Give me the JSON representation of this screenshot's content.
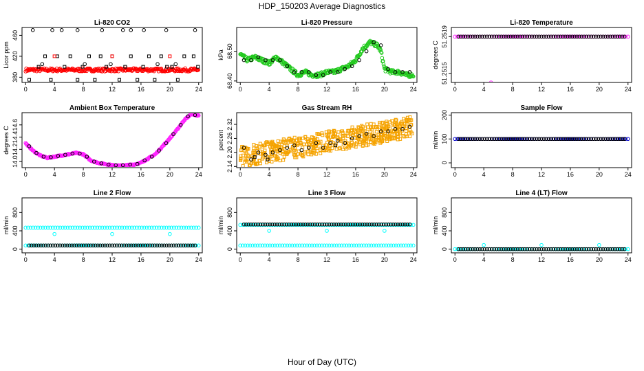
{
  "figure": {
    "title": "HDP_150203  Average Diagnostics",
    "xlabel": "Hour of Day (UTC)"
  },
  "colors": {
    "black": "#000000",
    "red": "#ff0000",
    "green": "#22c91e",
    "magenta": "#ff22ff",
    "orange": "#f5a300",
    "blue": "#0000cc",
    "cyan": "#00ffff"
  },
  "chart_data": [
    {
      "type": "scatter",
      "title": "Li-820 CO2",
      "ylabel": "Licor ppm",
      "xlim": [
        -0.5,
        24.5
      ],
      "ylim": [
        370,
        475
      ],
      "xticks": [
        0,
        4,
        8,
        12,
        16,
        20,
        24
      ],
      "yticks": [
        380,
        420,
        460
      ],
      "grid": false,
      "series": [
        {
          "color": "red",
          "marker": "circle",
          "kind": "band",
          "x_range": [
            0,
            24
          ],
          "y_range": [
            391,
            397
          ]
        },
        {
          "color": "black",
          "marker": "circle",
          "kind": "points",
          "x": [
            1,
            2.3,
            3.7,
            5,
            7.2,
            8.2,
            10.6,
            11.8,
            13.5,
            14.6,
            16.4,
            18.3,
            19.5,
            20.8,
            23.5
          ],
          "y": [
            470,
            405,
            470,
            470,
            470,
            405,
            470,
            405,
            470,
            470,
            470,
            405,
            470,
            405,
            470
          ]
        },
        {
          "color": "black",
          "marker": "square",
          "kind": "points",
          "x": [
            0.5,
            1.8,
            2.7,
            3.5,
            4.4,
            5.4,
            6.2,
            7.2,
            7.9,
            8.8,
            9.6,
            10.4,
            11.2,
            12,
            13,
            13.8,
            14.6,
            15.5,
            16.3,
            17.1,
            17.9,
            18.8,
            19.6,
            20.3,
            21.1,
            22,
            23.3,
            23.9
          ],
          "y": [
            375,
            400,
            420,
            375,
            420,
            400,
            420,
            375,
            400,
            420,
            375,
            420,
            400,
            420,
            375,
            400,
            420,
            375,
            400,
            420,
            375,
            420,
            400,
            400,
            375,
            420,
            420,
            400
          ]
        },
        {
          "color": "red",
          "marker": "square",
          "kind": "points",
          "x": [
            4,
            12,
            20
          ],
          "y": [
            420,
            420,
            420
          ]
        }
      ]
    },
    {
      "type": "scatter",
      "title": "Li-820 Pressure",
      "ylabel": "kPa",
      "xlim": [
        -0.5,
        24.5
      ],
      "ylim": [
        68.395,
        68.58
      ],
      "xticks": [
        0,
        4,
        8,
        12,
        16,
        20,
        24
      ],
      "yticks": [
        68.4,
        68.5
      ],
      "ytick_labels": [
        "68.40",
        "68.50"
      ],
      "grid": false,
      "series": [
        {
          "color": "green",
          "marker": "circle",
          "kind": "trace",
          "x": [
            0,
            1,
            2,
            3,
            4,
            5,
            6,
            7,
            8,
            9,
            10,
            11,
            12,
            13,
            14,
            15,
            16,
            17,
            18,
            19,
            19.5,
            20,
            21,
            22,
            23,
            24
          ],
          "y": [
            68.49,
            68.47,
            68.48,
            68.47,
            68.46,
            68.48,
            68.46,
            68.44,
            68.42,
            68.43,
            68.42,
            68.42,
            68.43,
            68.43,
            68.44,
            68.45,
            68.47,
            68.51,
            68.53,
            68.52,
            68.5,
            68.44,
            68.43,
            68.43,
            68.42,
            68.42
          ],
          "spread": 0.014
        },
        {
          "color": "black",
          "marker": "circle",
          "kind": "points",
          "x": [
            0.5,
            1.5,
            2.5,
            3.5,
            4.5,
            5.5,
            6.5,
            7.5,
            8.5,
            9.5,
            10.5,
            11.5,
            12.5,
            13.5,
            14.5,
            15.5,
            16.5,
            17.5,
            18.5,
            19.5,
            20.5,
            21.5,
            22.5,
            23.5
          ],
          "y": [
            68.47,
            68.47,
            68.48,
            68.47,
            68.47,
            68.47,
            68.45,
            68.43,
            68.43,
            68.43,
            68.42,
            68.42,
            68.43,
            68.43,
            68.44,
            68.45,
            68.47,
            68.5,
            68.53,
            68.52,
            68.44,
            68.43,
            68.43,
            68.43
          ]
        }
      ]
    },
    {
      "type": "scatter",
      "title": "Li-820 Temperature",
      "ylabel": "degrees C",
      "xlim": [
        -0.5,
        24.5
      ],
      "ylim": [
        51.2514,
        51.252
      ],
      "xticks": [
        0,
        4,
        8,
        12,
        16,
        20,
        24
      ],
      "yticks": [
        51.2515,
        51.2519
      ],
      "ytick_labels": [
        "51.2515",
        "51.2519"
      ],
      "grid": false,
      "series": [
        {
          "color": "magenta",
          "marker": "circle",
          "kind": "line_points",
          "x_range": [
            0,
            24
          ],
          "y": 51.2519
        },
        {
          "color": "black",
          "marker": "circle",
          "kind": "line_points",
          "x_range": [
            0.5,
            23.5
          ],
          "y": 51.2519
        },
        {
          "color": "magenta",
          "marker": "circle",
          "kind": "points",
          "x": [
            5
          ],
          "y": [
            51.2514
          ]
        }
      ]
    },
    {
      "type": "scatter",
      "title": "Ambient Box Temperature",
      "ylabel": "degrees C",
      "xlim": [
        -0.5,
        24.5
      ],
      "ylim": [
        13.9,
        14.8
      ],
      "xticks": [
        0,
        4,
        8,
        12,
        16,
        20,
        24
      ],
      "yticks": [
        14.0,
        14.2,
        14.4,
        14.6
      ],
      "ytick_labels": [
        "14.0",
        "14.2",
        "14.4",
        "14.6"
      ],
      "grid": false,
      "series": [
        {
          "color": "magenta",
          "marker": "circle",
          "kind": "trace",
          "x": [
            0,
            1,
            2,
            3,
            4,
            5,
            6,
            7,
            8,
            9,
            10,
            11,
            12,
            13,
            14,
            15,
            16,
            17,
            18,
            19,
            20,
            21,
            22,
            23,
            24
          ],
          "y": [
            14.3,
            14.18,
            14.1,
            14.06,
            14.08,
            14.1,
            14.12,
            14.14,
            14.12,
            14.02,
            13.98,
            13.96,
            13.94,
            13.93,
            13.94,
            13.95,
            13.98,
            14.05,
            14.12,
            14.25,
            14.38,
            14.52,
            14.68,
            14.78,
            14.75
          ],
          "spread": 0.02
        },
        {
          "color": "black",
          "marker": "circle",
          "kind": "points",
          "x": [
            0.5,
            1.5,
            2.5,
            3.5,
            4.5,
            5.5,
            6.5,
            7.5,
            8.5,
            9.5,
            10.5,
            11.5,
            12.5,
            13.5,
            14.5,
            15.5,
            16.5,
            17.5,
            18.5,
            19.5,
            20.5,
            21.5,
            22.5,
            23.5
          ],
          "y": [
            14.25,
            14.14,
            14.08,
            14.07,
            14.09,
            14.11,
            14.13,
            14.13,
            14.08,
            14.0,
            13.97,
            13.95,
            13.94,
            13.94,
            13.95,
            13.96,
            14.02,
            14.08,
            14.18,
            14.3,
            14.45,
            14.6,
            14.74,
            14.76
          ]
        }
      ]
    },
    {
      "type": "scatter",
      "title": "Gas Stream RH",
      "ylabel": "percent",
      "xlim": [
        -0.5,
        24.5
      ],
      "ylim": [
        2.135,
        2.37
      ],
      "xticks": [
        0,
        4,
        8,
        12,
        16,
        20,
        24
      ],
      "yticks": [
        2.14,
        2.2,
        2.26,
        2.32
      ],
      "ytick_labels": [
        "2.14",
        "2.20",
        "2.26",
        "2.32"
      ],
      "grid": false,
      "series": [
        {
          "color": "orange",
          "marker": "square",
          "kind": "cloud",
          "x_range": [
            0,
            24
          ],
          "y_start": 2.18,
          "y_end": 2.31,
          "spread": 0.045
        },
        {
          "color": "black",
          "marker": "circle",
          "kind": "points",
          "x": [
            0.5,
            1.5,
            2.5,
            3.5,
            4.5,
            5.5,
            6.5,
            7.5,
            8.5,
            9.5,
            10.5,
            11.5,
            12.5,
            13.5,
            14.5,
            15.5,
            16.5,
            17.5,
            18.5,
            19.5,
            20.5,
            21.5,
            22.5,
            23.5
          ],
          "y": [
            2.22,
            2.17,
            2.2,
            2.19,
            2.2,
            2.21,
            2.22,
            2.23,
            2.21,
            2.22,
            2.24,
            2.22,
            2.24,
            2.25,
            2.24,
            2.26,
            2.27,
            2.28,
            2.27,
            2.29,
            2.29,
            2.3,
            2.3,
            2.31
          ]
        },
        {
          "color": "black",
          "marker": "square",
          "kind": "points",
          "x": [
            2,
            3.8,
            13.2
          ],
          "y": [
            2.18,
            2.17,
            2.23
          ]
        }
      ]
    },
    {
      "type": "scatter",
      "title": "Sample Flow",
      "ylabel": "ml/min",
      "xlim": [
        -0.5,
        24.5
      ],
      "ylim": [
        -20,
        210
      ],
      "xticks": [
        0,
        4,
        8,
        12,
        16,
        20,
        24
      ],
      "yticks": [
        0,
        100,
        200
      ],
      "grid": false,
      "series": [
        {
          "color": "blue",
          "marker": "circle",
          "kind": "line_points",
          "x_range": [
            0,
            24
          ],
          "y": 100
        },
        {
          "color": "black",
          "marker": "circle",
          "kind": "line_points",
          "x_range": [
            0.5,
            23.5
          ],
          "y": 100
        }
      ]
    },
    {
      "type": "scatter",
      "title": "Line 2 Flow",
      "ylabel": "ml/min",
      "xlim": [
        -0.5,
        24.5
      ],
      "ylim": [
        -80,
        1120
      ],
      "xticks": [
        0,
        4,
        8,
        12,
        16,
        20,
        24
      ],
      "yticks": [
        0,
        400,
        800
      ],
      "grid": false,
      "series": [
        {
          "color": "cyan",
          "marker": "circle",
          "kind": "line_points",
          "x_range": [
            0,
            24
          ],
          "y": 470
        },
        {
          "color": "cyan",
          "marker": "circle",
          "kind": "line_points",
          "x_range": [
            0,
            24
          ],
          "y": 80
        },
        {
          "color": "cyan",
          "marker": "circle",
          "kind": "points",
          "x": [
            4,
            12,
            20
          ],
          "y": [
            330,
            330,
            330
          ]
        },
        {
          "color": "black",
          "marker": "circle",
          "kind": "line_points",
          "x_range": [
            0.5,
            23.5
          ],
          "y": 80
        }
      ]
    },
    {
      "type": "scatter",
      "title": "Line 3 Flow",
      "ylabel": "ml/min",
      "xlim": [
        -0.5,
        24.5
      ],
      "ylim": [
        -80,
        1120
      ],
      "xticks": [
        0,
        4,
        8,
        12,
        16,
        20,
        24
      ],
      "yticks": [
        0,
        400,
        800
      ],
      "grid": false,
      "series": [
        {
          "color": "cyan",
          "marker": "circle",
          "kind": "line_points",
          "x_range": [
            0,
            24
          ],
          "y": 80
        },
        {
          "color": "cyan",
          "marker": "circle",
          "kind": "line_points",
          "x_range": [
            0,
            24
          ],
          "y": 530
        },
        {
          "color": "cyan",
          "marker": "circle",
          "kind": "points",
          "x": [
            4,
            12,
            20
          ],
          "y": [
            400,
            400,
            400
          ]
        },
        {
          "color": "black",
          "marker": "circle",
          "kind": "line_points",
          "x_range": [
            0.5,
            23.5
          ],
          "y": 540
        }
      ]
    },
    {
      "type": "scatter",
      "title": "Line 4 (LT) Flow",
      "ylabel": "ml/min",
      "xlim": [
        -0.5,
        24.5
      ],
      "ylim": [
        -80,
        1120
      ],
      "xticks": [
        0,
        4,
        8,
        12,
        16,
        20,
        24
      ],
      "yticks": [
        0,
        400,
        800
      ],
      "grid": false,
      "series": [
        {
          "color": "cyan",
          "marker": "circle",
          "kind": "line_points",
          "x_range": [
            0,
            24
          ],
          "y": 0
        },
        {
          "color": "cyan",
          "marker": "circle",
          "kind": "points",
          "x": [
            4,
            12,
            20
          ],
          "y": [
            90,
            90,
            90
          ]
        },
        {
          "color": "black",
          "marker": "circle",
          "kind": "line_points",
          "x_range": [
            0.5,
            23.5
          ],
          "y": 0
        }
      ]
    }
  ]
}
